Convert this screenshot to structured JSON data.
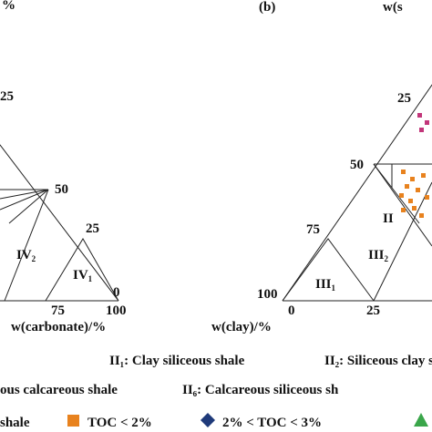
{
  "left_panel": {
    "axis_top": "%",
    "side_ticks": [
      "25",
      "50",
      "25"
    ],
    "zone_a": {
      "label": "IV",
      "sub": "2"
    },
    "zone_b": {
      "label": "IV",
      "sub": "1"
    },
    "corner_ticks": [
      "0",
      "75",
      "100"
    ],
    "axis_bottom": "w(carbonate)/%"
  },
  "right_panel": {
    "panel_label": "(b)",
    "axis_top": "w(s",
    "side_ticks": [
      "25",
      "50",
      "75",
      "100"
    ],
    "base_ticks": [
      "0",
      "25"
    ],
    "zone_a": {
      "label": "III",
      "sub": "2"
    },
    "zone_b": {
      "label": "III",
      "sub": "1"
    },
    "zone_c": {
      "label": "II"
    },
    "axis_bottom": "w(clay)/%"
  },
  "legend": {
    "row1": [
      "II₁: Clay siliceous shale",
      "II₂: Siliceous clay s"
    ],
    "row2": [
      "ous calcareous shale",
      "II₆: Calcareous siliceous sh"
    ],
    "row3": [
      "shale",
      "TOC < 2%",
      "2% < TOC < 3%"
    ]
  }
}
